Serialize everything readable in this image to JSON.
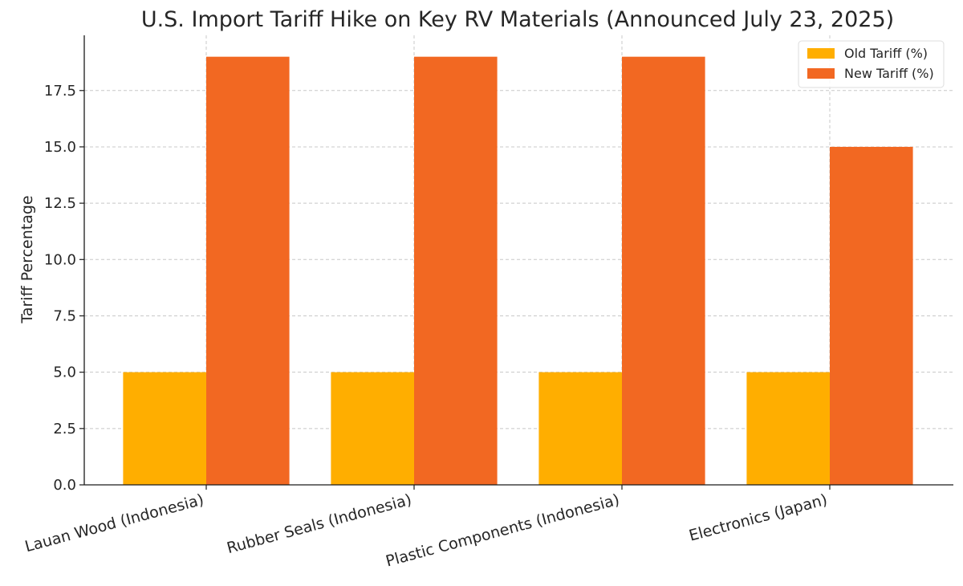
{
  "chart_data": {
    "type": "bar",
    "title": "U.S. Import Tariff Hike on Key RV Materials (Announced July 23, 2025)",
    "xlabel": "",
    "ylabel": "Tariff Percentage",
    "categories": [
      "Lauan Wood (Indonesia)",
      "Rubber Seals (Indonesia)",
      "Plastic Components (Indonesia)",
      "Electronics (Japan)"
    ],
    "series": [
      {
        "name": "Old Tariff (%)",
        "values": [
          5,
          5,
          5,
          5
        ],
        "color": "#FFAE00"
      },
      {
        "name": "New Tariff (%)",
        "values": [
          19,
          19,
          19,
          15
        ],
        "color": "#F26822"
      }
    ],
    "ylim": [
      0,
      19.95
    ],
    "yticks": [
      0,
      2.5,
      5,
      7.5,
      10,
      12.5,
      15,
      17.5
    ],
    "ytick_labels": [
      "0.0",
      "2.5",
      "5.0",
      "7.5",
      "10.0",
      "12.5",
      "15.0",
      "17.5"
    ],
    "grid": true,
    "legend_position": "top-right"
  }
}
